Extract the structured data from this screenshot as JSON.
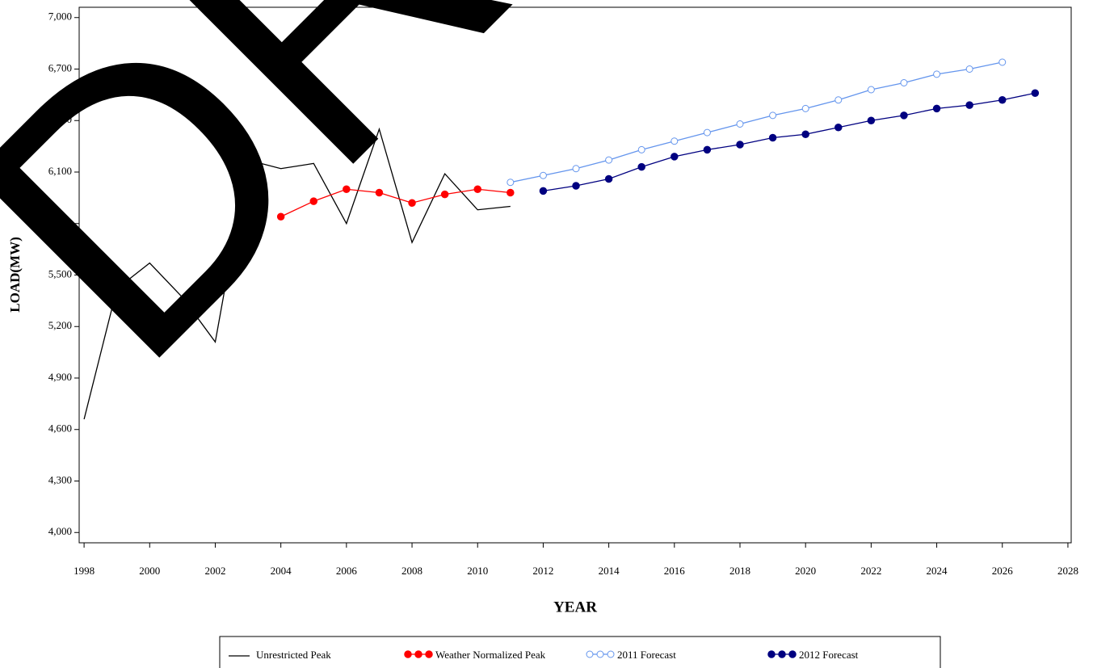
{
  "chart_data": {
    "type": "line",
    "watermark": "DRAFT",
    "x_label": "YEAR",
    "y_label": "LOAD(MW)",
    "x": [
      1998,
      1999,
      2000,
      2001,
      2002,
      2003,
      2004,
      2005,
      2006,
      2007,
      2008,
      2009,
      2010,
      2011,
      2012,
      2013,
      2014,
      2015,
      2016,
      2017,
      2018,
      2019,
      2020,
      2021,
      2022,
      2023,
      2024,
      2025,
      2026,
      2027
    ],
    "series": [
      {
        "name": "Unrestricted Peak",
        "color": "#000000",
        "marker": "none",
        "values": [
          4660,
          5420,
          5570,
          5370,
          5110,
          6170,
          6120,
          6150,
          5800,
          6350,
          5690,
          6090,
          5880,
          5900,
          null,
          null,
          null,
          null,
          null,
          null,
          null,
          null,
          null,
          null,
          null,
          null,
          null,
          null,
          null,
          null
        ]
      },
      {
        "name": "Weather Normalized Peak",
        "color": "#ff0000",
        "marker": "filled",
        "values": [
          null,
          null,
          null,
          null,
          null,
          null,
          5840,
          5930,
          6000,
          5980,
          5920,
          5970,
          6000,
          5980,
          null,
          null,
          null,
          null,
          null,
          null,
          null,
          null,
          null,
          null,
          null,
          null,
          null,
          null,
          null,
          null
        ]
      },
      {
        "name": "2011 Forecast",
        "color": "#6495ed",
        "marker": "open",
        "values": [
          null,
          null,
          null,
          null,
          null,
          null,
          null,
          null,
          null,
          null,
          null,
          null,
          null,
          6040,
          6080,
          6120,
          6170,
          6230,
          6280,
          6330,
          6380,
          6430,
          6470,
          6520,
          6580,
          6620,
          6670,
          6700,
          6740,
          null
        ]
      },
      {
        "name": "2012 Forecast",
        "color": "#000080",
        "marker": "filled",
        "values": [
          null,
          null,
          null,
          null,
          null,
          null,
          null,
          null,
          null,
          null,
          null,
          null,
          null,
          null,
          5990,
          6020,
          6060,
          6130,
          6190,
          6230,
          6260,
          6300,
          6320,
          6360,
          6400,
          6430,
          6470,
          6490,
          6520,
          6560
        ]
      }
    ],
    "xlim": [
      1997.85,
      2028.1
    ],
    "ylim": [
      3940,
      7060
    ],
    "xticks": [
      1998,
      2000,
      2002,
      2004,
      2006,
      2008,
      2010,
      2012,
      2014,
      2016,
      2018,
      2020,
      2022,
      2024,
      2026,
      2028
    ],
    "yticks": [
      {
        "value": 4000,
        "label": "4,000"
      },
      {
        "value": 4300,
        "label": "4,300"
      },
      {
        "value": 4600,
        "label": "4,600"
      },
      {
        "value": 4900,
        "label": "4,900"
      },
      {
        "value": 5200,
        "label": "5,200"
      },
      {
        "value": 5500,
        "label": "5,500"
      },
      {
        "value": 5800,
        "label": "5,800"
      },
      {
        "value": 6100,
        "label": "6,100"
      },
      {
        "value": 6400,
        "label": "6,400"
      },
      {
        "value": 6700,
        "label": "6,700"
      },
      {
        "value": 7000,
        "label": "7,000"
      }
    ]
  }
}
